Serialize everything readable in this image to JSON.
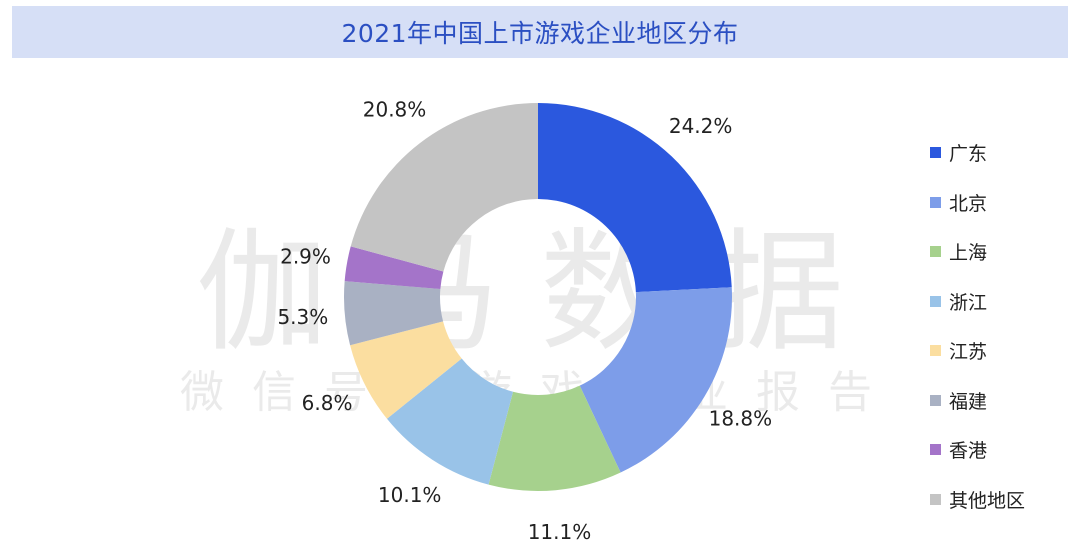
{
  "title": "2021年中国上市游戏企业地区分布",
  "watermark": {
    "main": "伽马数据",
    "sub": "微信号：游戏产业报告"
  },
  "chart_data": {
    "type": "pie",
    "variant": "donut",
    "title": "2021年中国上市游戏企业地区分布",
    "labels": [
      "广东",
      "北京",
      "上海",
      "浙江",
      "江苏",
      "福建",
      "香港",
      "其他地区"
    ],
    "values": [
      24.2,
      18.8,
      11.1,
      10.1,
      6.8,
      5.3,
      2.9,
      20.8
    ],
    "value_labels": [
      "24.2%",
      "18.8%",
      "11.1%",
      "10.1%",
      "6.8%",
      "5.3%",
      "2.9%",
      "20.8%"
    ],
    "colors": [
      "#2b58de",
      "#7d9de9",
      "#a6d18d",
      "#99c3e8",
      "#fbdea0",
      "#a9b1c3",
      "#a474c9",
      "#c4c4c4"
    ],
    "legend_position": "right",
    "start": "12 o'clock",
    "direction": "clockwise"
  }
}
